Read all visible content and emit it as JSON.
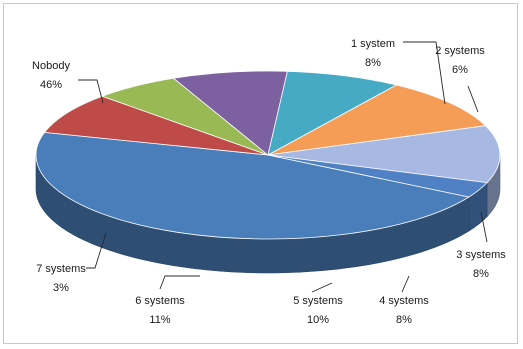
{
  "chart_data": {
    "type": "pie",
    "style": "3d",
    "legend": "none",
    "slices": [
      {
        "label": "Nobody",
        "value": 46,
        "value_text": "46%",
        "color": "#4a7ebb"
      },
      {
        "label": "1 system",
        "value": 8,
        "value_text": "8%",
        "color": "#be4b48"
      },
      {
        "label": "2 systems",
        "value": 6,
        "value_text": "6%",
        "color": "#98b954"
      },
      {
        "label": "3 systems",
        "value": 8,
        "value_text": "8%",
        "color": "#7d60a0"
      },
      {
        "label": "4 systems",
        "value": 8,
        "value_text": "8%",
        "color": "#46aac5"
      },
      {
        "label": "5 systems",
        "value": 10,
        "value_text": "10%",
        "color": "#f59d56"
      },
      {
        "label": "6 systems",
        "value": 11,
        "value_text": "11%",
        "color": "#a7b9e3"
      },
      {
        "label": "7 systems",
        "value": 3,
        "value_text": "3%",
        "color": "#4f81c4"
      }
    ]
  }
}
